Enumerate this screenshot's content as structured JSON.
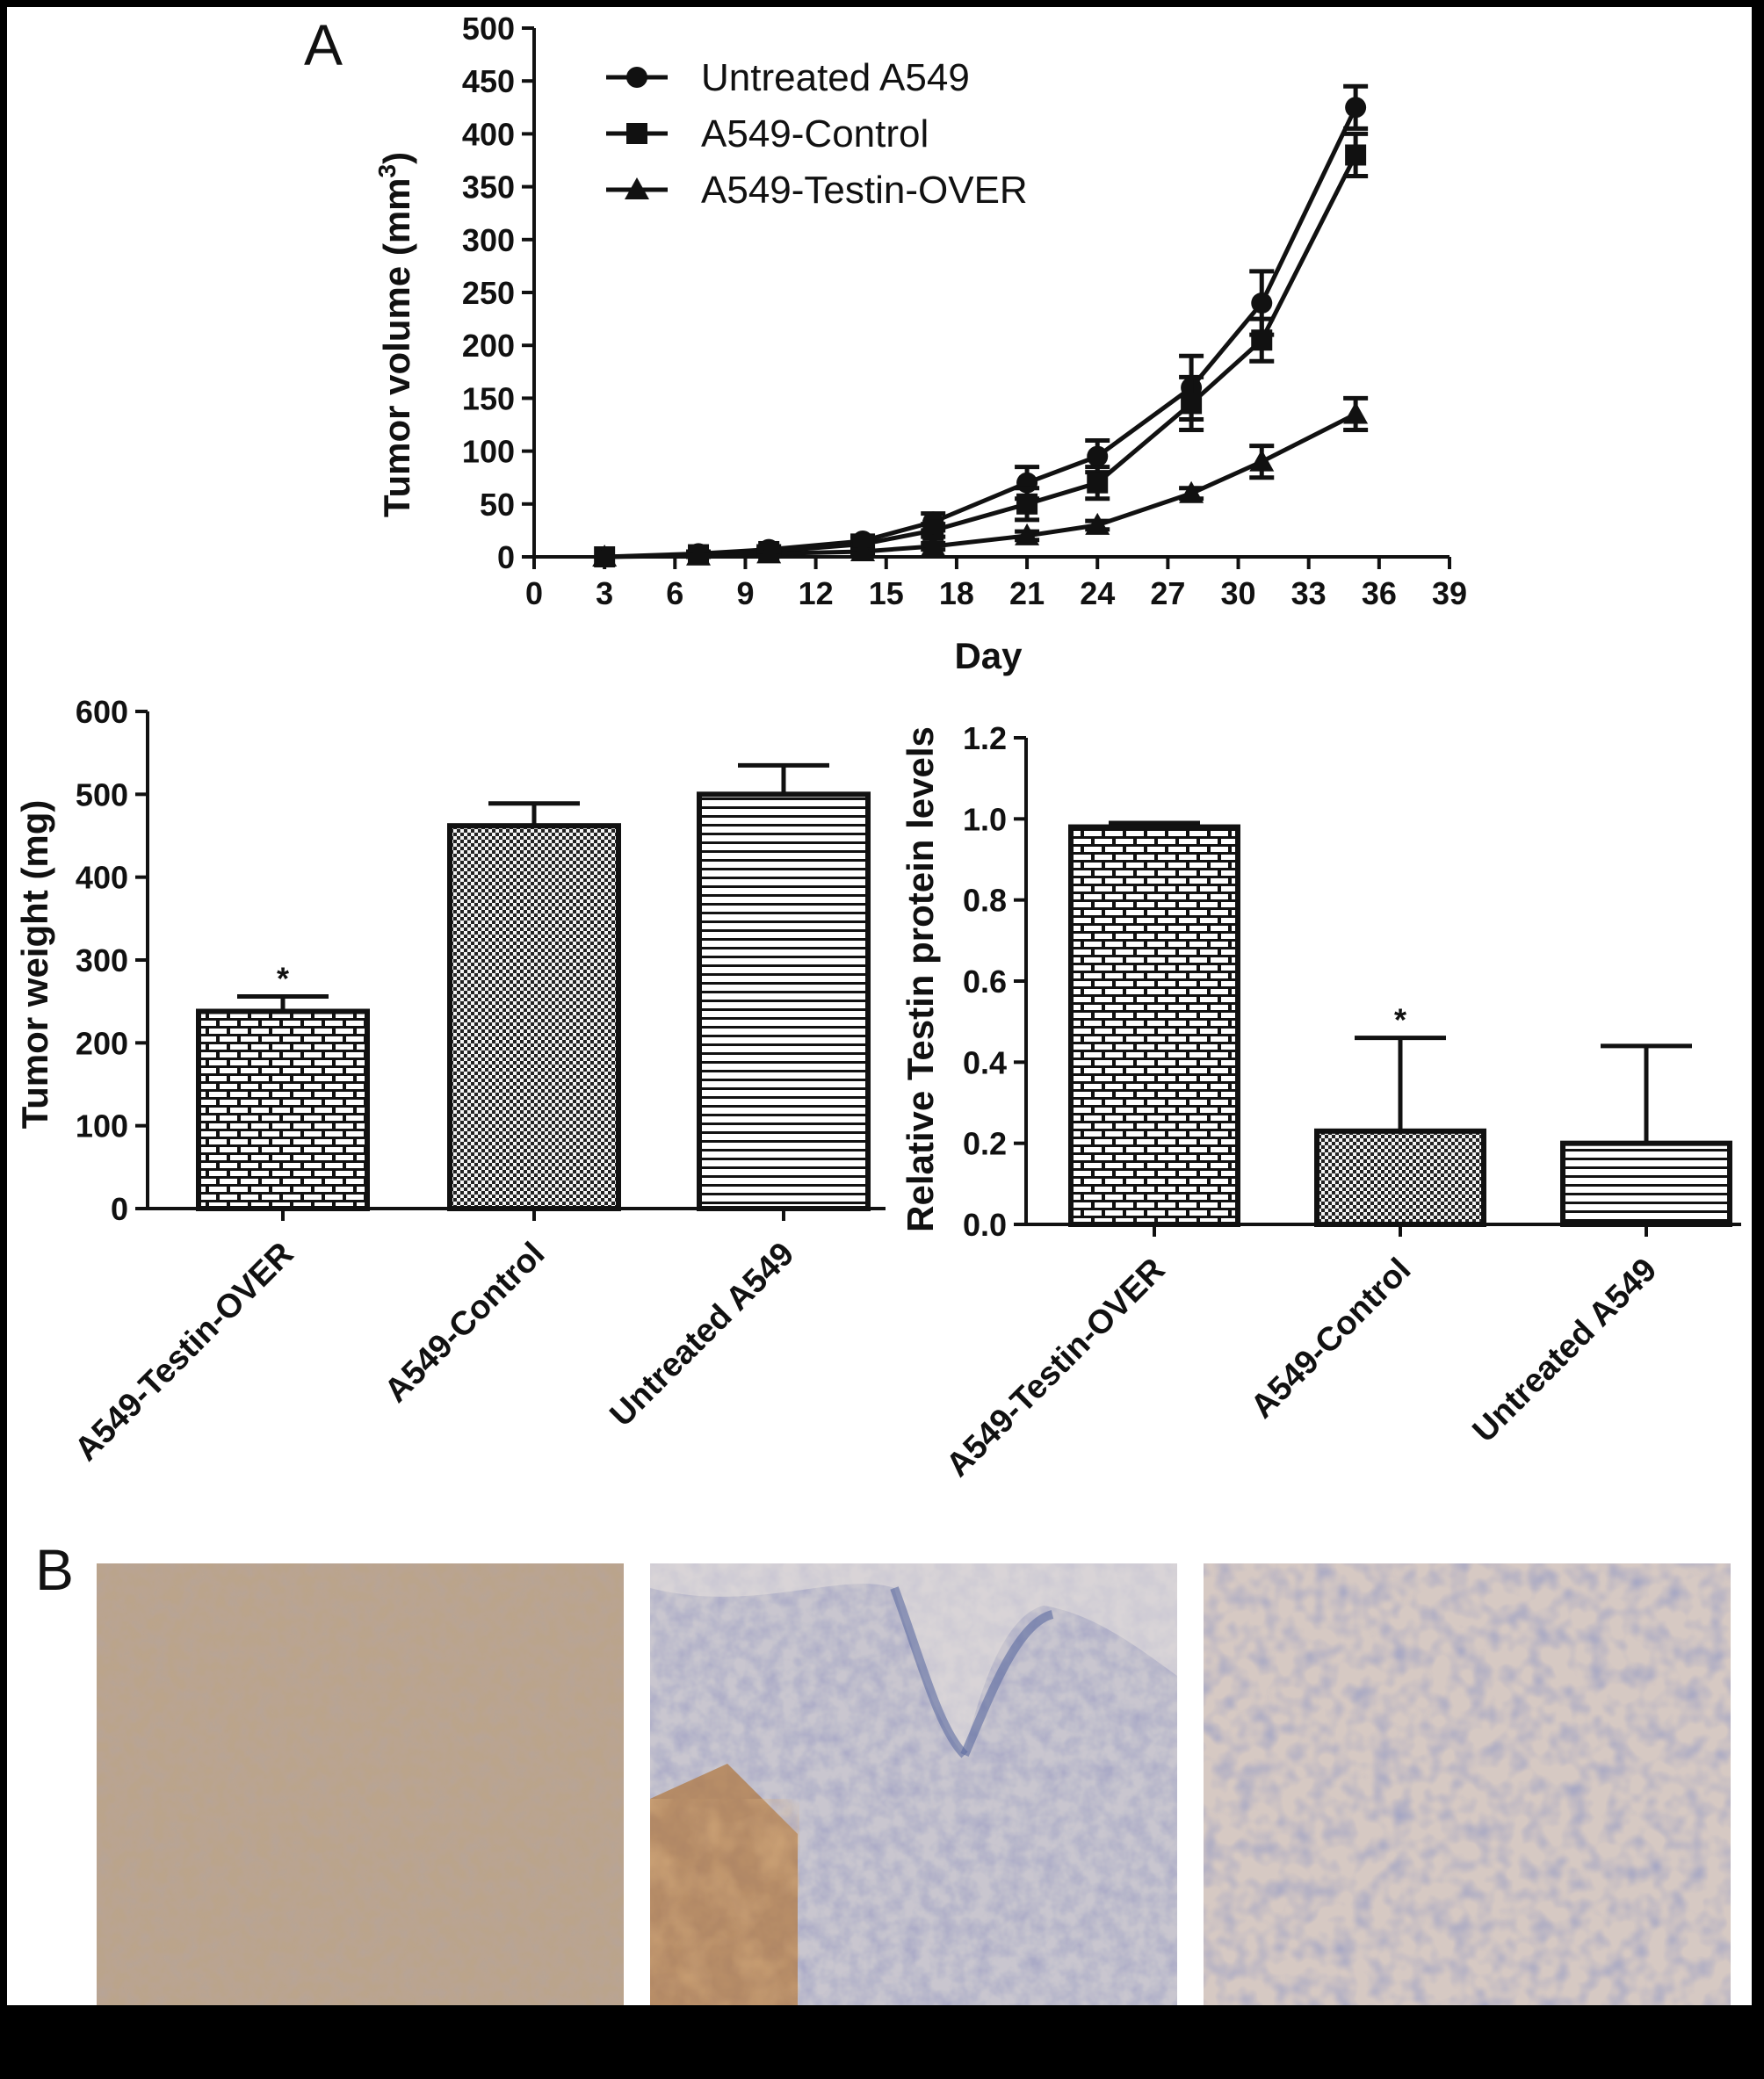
{
  "panel_labels": {
    "a": "A",
    "b": "B"
  },
  "chart_data": [
    {
      "type": "line",
      "id": "tumor-volume",
      "title": "",
      "xlabel": "Day",
      "ylabel": "Tumor volume (mm",
      "ylabel_sup": "3",
      "ylabel_close": ")",
      "xlim": [
        0,
        39
      ],
      "ylim": [
        0,
        500
      ],
      "xticks": [
        0,
        3,
        6,
        9,
        12,
        15,
        18,
        21,
        24,
        27,
        30,
        33,
        36,
        39
      ],
      "yticks": [
        0,
        50,
        100,
        150,
        200,
        250,
        300,
        350,
        400,
        450,
        500
      ],
      "legend_position": "top-left",
      "series": [
        {
          "name": "Untreated A549",
          "marker": "circle",
          "x": [
            3,
            7,
            10,
            14,
            17,
            21,
            24,
            28,
            31,
            35
          ],
          "y": [
            0,
            3,
            7,
            15,
            33,
            70,
            95,
            160,
            240,
            425
          ],
          "err": [
            0,
            2,
            3,
            5,
            8,
            15,
            15,
            30,
            30,
            20
          ]
        },
        {
          "name": "A549-Control",
          "marker": "square",
          "x": [
            3,
            7,
            10,
            14,
            17,
            21,
            24,
            28,
            31,
            35
          ],
          "y": [
            0,
            2,
            5,
            12,
            25,
            50,
            70,
            145,
            205,
            380
          ],
          "err": [
            0,
            2,
            3,
            5,
            6,
            15,
            15,
            25,
            20,
            20
          ]
        },
        {
          "name": "A549-Testin-OVER",
          "marker": "triangle",
          "x": [
            3,
            7,
            10,
            14,
            17,
            21,
            24,
            28,
            31,
            35
          ],
          "y": [
            0,
            1,
            3,
            5,
            10,
            20,
            30,
            60,
            90,
            135
          ],
          "err": [
            0,
            1,
            2,
            2,
            3,
            4,
            4,
            5,
            15,
            15
          ]
        }
      ]
    },
    {
      "type": "bar",
      "id": "tumor-weight",
      "ylabel": "Tumor weight (mg)",
      "ylim": [
        0,
        600
      ],
      "yticks": [
        0,
        100,
        200,
        300,
        400,
        500,
        600
      ],
      "categories": [
        "A549-Testin-OVER",
        "A549-Control",
        "Untreated A549"
      ],
      "values": [
        238,
        462,
        500
      ],
      "errors": [
        18,
        27,
        35
      ],
      "patterns": [
        "brick",
        "checker",
        "hlines"
      ],
      "annotations": [
        "*",
        "",
        ""
      ]
    },
    {
      "type": "bar",
      "id": "testin-protein",
      "ylabel": "Relative Testin protein levels",
      "ylim": [
        0,
        1.2
      ],
      "yticks": [
        "0.0",
        "0.2",
        "0.4",
        "0.6",
        "0.8",
        "1.0",
        "1.2"
      ],
      "categories": [
        "A549-Testin-OVER",
        "A549-Control",
        "Untreated A549"
      ],
      "values": [
        0.98,
        0.23,
        0.2
      ],
      "errors": [
        0.01,
        0.23,
        0.24
      ],
      "patterns": [
        "brick",
        "checker",
        "hlines"
      ],
      "annotations": [
        "",
        "*",
        ""
      ]
    }
  ],
  "micrographs": [
    {
      "stain": "brown-diffuse"
    },
    {
      "stain": "epidermis-blue"
    },
    {
      "stain": "blue-nuclei"
    }
  ]
}
